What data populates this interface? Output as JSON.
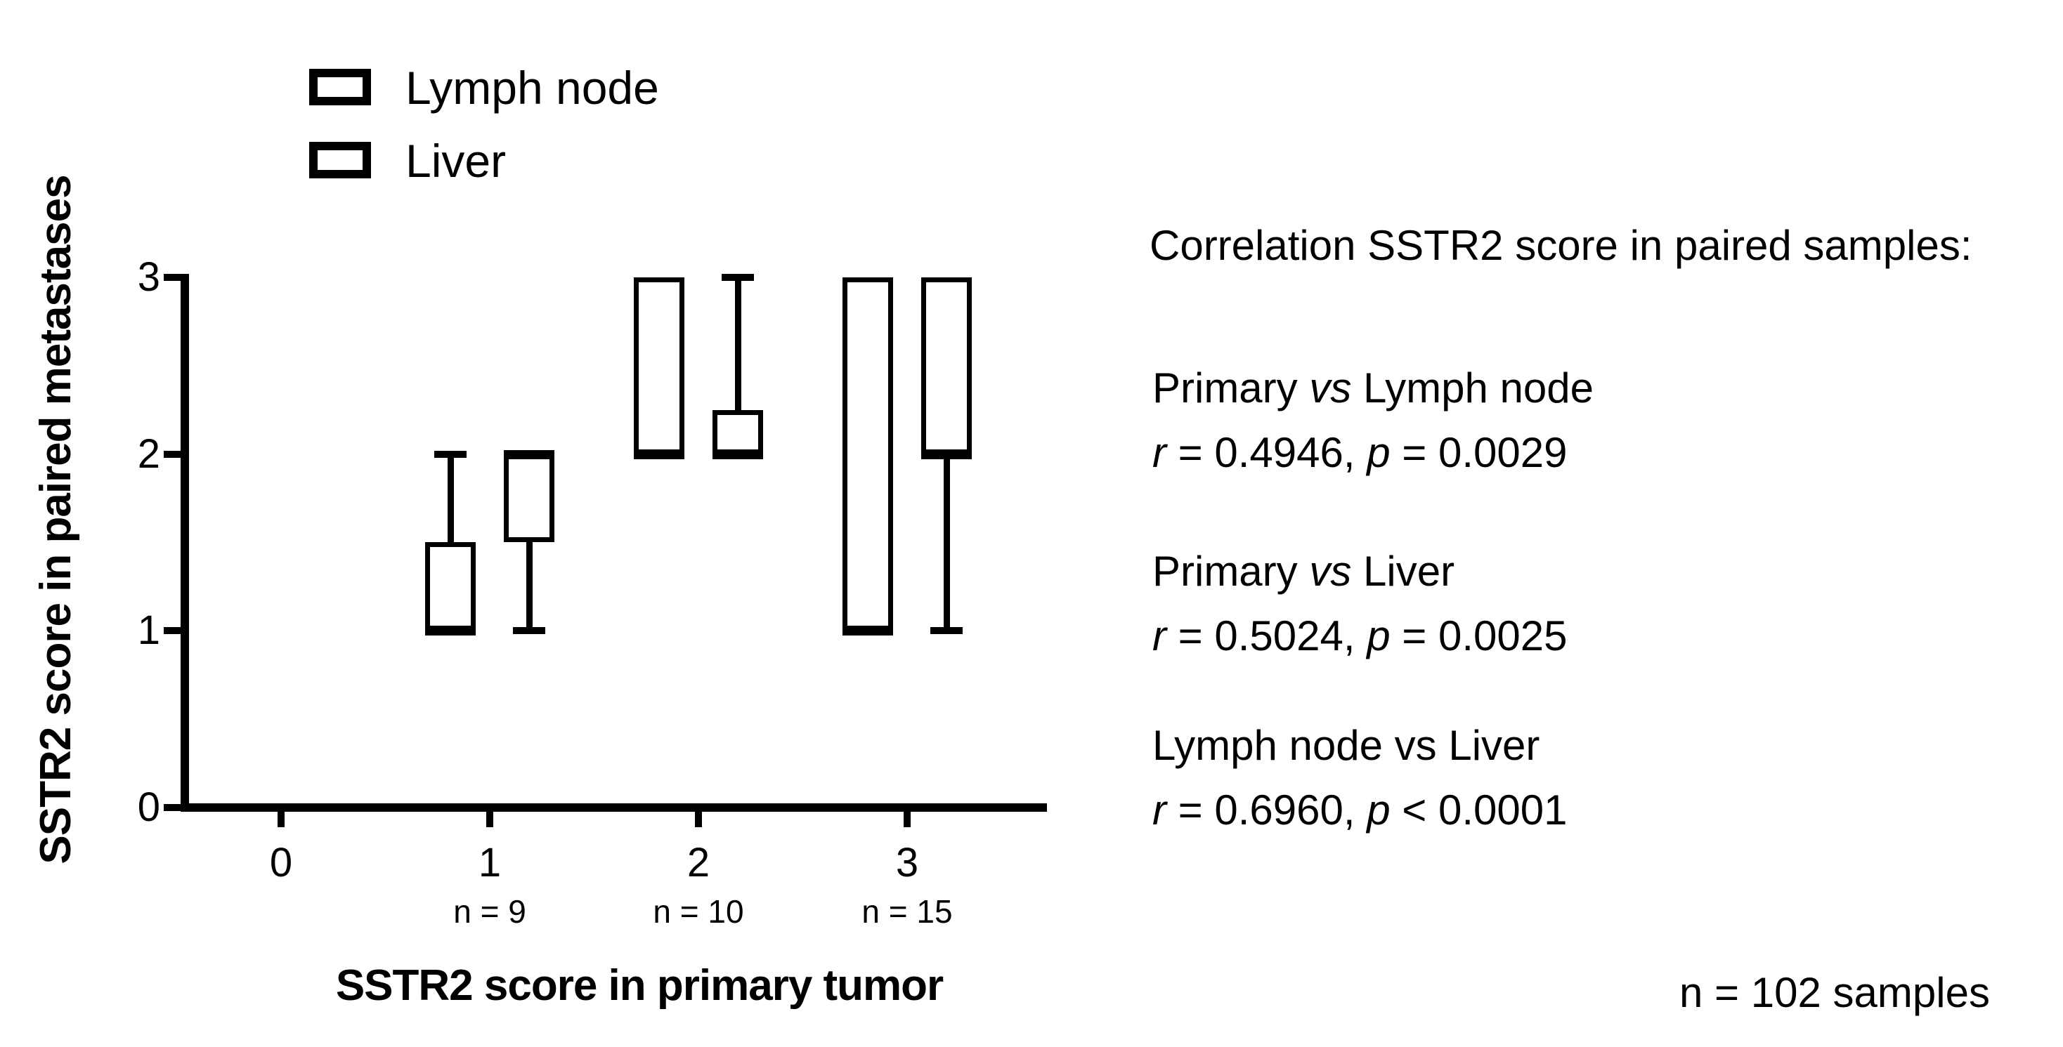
{
  "figure": {
    "background": "#ffffff",
    "ink": "#000000"
  },
  "legend": {
    "items": [
      {
        "label": "Lymph node",
        "marker": "open-box"
      },
      {
        "label": "Liver",
        "marker": "open-box"
      }
    ]
  },
  "chart_data": {
    "type": "box",
    "title": "",
    "xlabel": "SSTR2 score in primary tumor",
    "ylabel": "SSTR2 score in paired metastases",
    "xlim": [
      -0.5,
      3.7
    ],
    "ylim": [
      0,
      3
    ],
    "xticks": [
      "0",
      "1",
      "2",
      "3"
    ],
    "yticks": [
      "0",
      "1",
      "2",
      "3"
    ],
    "grid": false,
    "legend_position": "top-left",
    "group_counts": [
      {
        "x": 1,
        "label": "n = 9"
      },
      {
        "x": 2,
        "label": "n = 10"
      },
      {
        "x": 3,
        "label": "n = 15"
      }
    ],
    "series": [
      {
        "name": "Lymph node",
        "offset": -0.19,
        "boxes": [
          {
            "x": 1,
            "min": 1,
            "q1": 1,
            "median": 1,
            "q3": 1.5,
            "max": 2
          },
          {
            "x": 2,
            "min": 2,
            "q1": 2,
            "median": 2,
            "q3": 3,
            "max": 3
          },
          {
            "x": 3,
            "min": 1,
            "q1": 1,
            "median": 1,
            "q3": 3,
            "max": 3
          }
        ]
      },
      {
        "name": "Liver",
        "offset": 0.19,
        "boxes": [
          {
            "x": 1,
            "min": 1,
            "q1": 1.5,
            "median": 2,
            "q3": 2,
            "max": 2
          },
          {
            "x": 2,
            "min": 2,
            "q1": 2,
            "median": 2,
            "q3": 2.25,
            "max": 3
          },
          {
            "x": 3,
            "min": 1,
            "q1": 2,
            "median": 2,
            "q3": 3,
            "max": 3
          }
        ]
      }
    ]
  },
  "stats_panel": {
    "heading": "Correlation SSTR2 score in paired samples:",
    "pairs": [
      {
        "title": [
          {
            "t": "Primary ",
            "i": false
          },
          {
            "t": "vs",
            "i": true
          },
          {
            "t": " Lymph node",
            "i": false
          }
        ],
        "result": [
          {
            "t": "r",
            "i": true
          },
          {
            "t": " = 0.4946, ",
            "i": false
          },
          {
            "t": "p",
            "i": true
          },
          {
            "t": " = 0.0029",
            "i": false
          }
        ]
      },
      {
        "title": [
          {
            "t": "Primary ",
            "i": false
          },
          {
            "t": "vs",
            "i": true
          },
          {
            "t": " Liver",
            "i": false
          }
        ],
        "result": [
          {
            "t": "r",
            "i": true
          },
          {
            "t": " = 0.5024, ",
            "i": false
          },
          {
            "t": "p",
            "i": true
          },
          {
            "t": " = 0.0025",
            "i": false
          }
        ]
      },
      {
        "title": [
          {
            "t": "Lymph node vs Liver",
            "i": false
          }
        ],
        "result": [
          {
            "t": "r",
            "i": true
          },
          {
            "t": " = 0.6960, ",
            "i": false
          },
          {
            "t": "p",
            "i": true
          },
          {
            "t": " < 0.0001",
            "i": false
          }
        ]
      }
    ],
    "sample_note": "n = 102 samples"
  }
}
